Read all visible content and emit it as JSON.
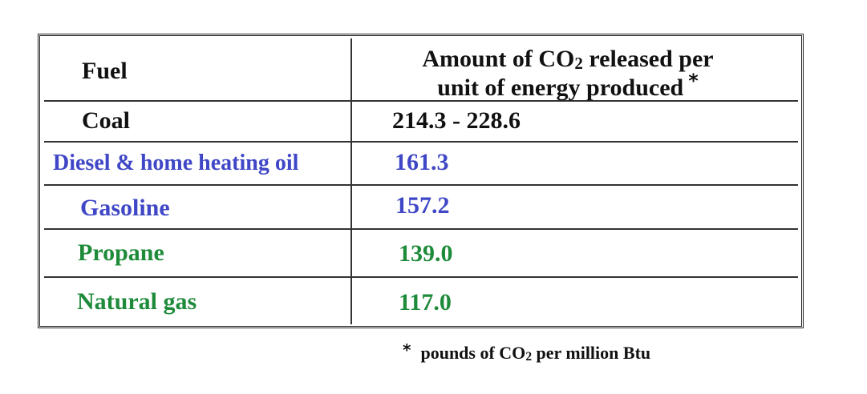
{
  "table": {
    "header": {
      "fuel_label": "Fuel",
      "amount_line1_prefix": "Amount of CO",
      "amount_line1_sub": "2",
      "amount_line1_suffix": " released per",
      "amount_line2": "unit of energy produced",
      "asterisk": "*"
    },
    "rows": [
      {
        "fuel": "Coal",
        "amount": "214.3 - 228.6"
      },
      {
        "fuel": "Diesel & home heating oil",
        "amount": "161.3"
      },
      {
        "fuel": "Gasoline",
        "amount": "157.2"
      },
      {
        "fuel": "Propane",
        "amount": "139.0"
      },
      {
        "fuel": "Natural gas",
        "amount": "117.0"
      }
    ],
    "colors": {
      "black": "#111111",
      "blue": "#3f47c6",
      "green": "#1e8b3a"
    }
  },
  "footnote": {
    "asterisk": "*",
    "prefix": "pounds of CO",
    "sub": "2",
    "suffix": " per million Btu"
  }
}
